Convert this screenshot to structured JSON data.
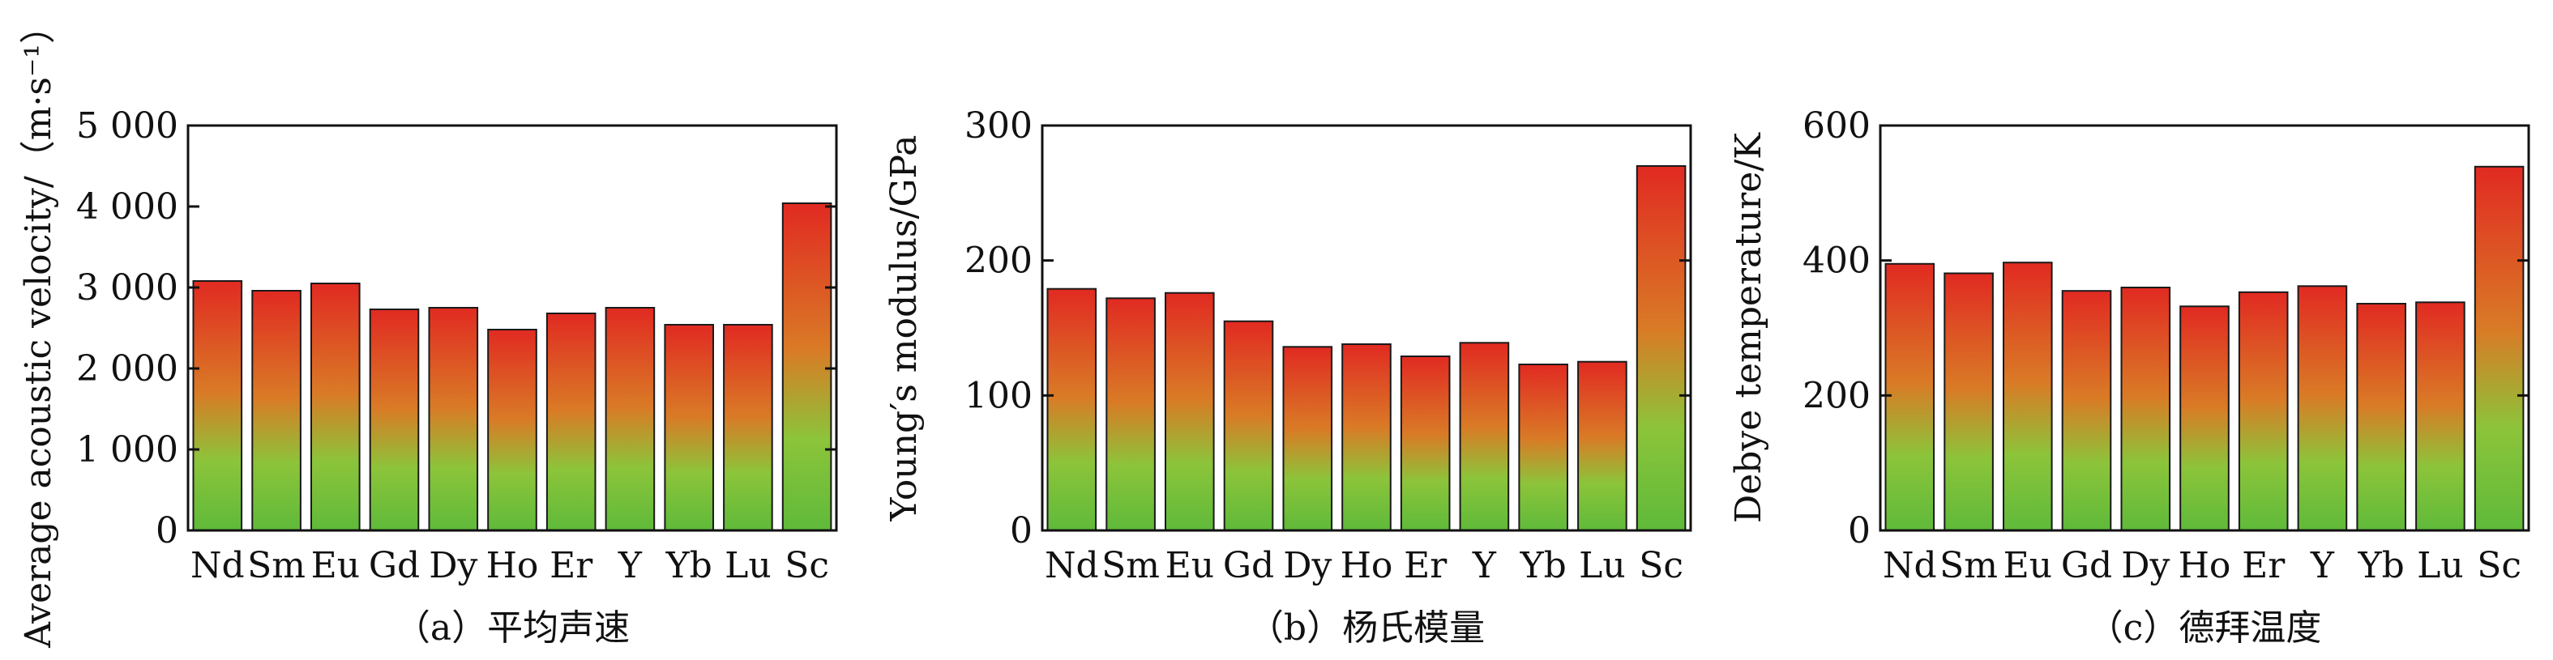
{
  "chart_data": [
    {
      "type": "bar",
      "categories": [
        "Nd",
        "Sm",
        "Eu",
        "Gd",
        "Dy",
        "Ho",
        "Er",
        "Y",
        "Yb",
        "Lu",
        "Sc"
      ],
      "values": [
        3080,
        2960,
        3050,
        2730,
        2750,
        2480,
        2680,
        2750,
        2540,
        2540,
        4040
      ],
      "ylabel": "Average acoustic velocity/（m·s⁻¹）",
      "ylim": [
        0,
        5000
      ],
      "yticks": [
        0,
        1000,
        2000,
        3000,
        4000,
        5000
      ],
      "ytick_labels": [
        "0",
        "1 000",
        "2 000",
        "3 000",
        "4 000",
        "5 000"
      ],
      "caption": "（a）平均声速"
    },
    {
      "type": "bar",
      "categories": [
        "Nd",
        "Sm",
        "Eu",
        "Gd",
        "Dy",
        "Ho",
        "Er",
        "Y",
        "Yb",
        "Lu",
        "Sc"
      ],
      "values": [
        179,
        172,
        176,
        155,
        136,
        138,
        129,
        139,
        123,
        125,
        270
      ],
      "ylabel": "Young′s modulus/GPa",
      "ylim": [
        0,
        300
      ],
      "yticks": [
        0,
        100,
        200,
        300
      ],
      "ytick_labels": [
        "0",
        "100",
        "200",
        "300"
      ],
      "caption": "（b）杨氏模量"
    },
    {
      "type": "bar",
      "categories": [
        "Nd",
        "Sm",
        "Eu",
        "Gd",
        "Dy",
        "Ho",
        "Er",
        "Y",
        "Yb",
        "Lu",
        "Sc"
      ],
      "values": [
        395,
        381,
        397,
        355,
        360,
        332,
        353,
        362,
        336,
        338,
        539
      ],
      "ylabel": "Debye temperature/K",
      "ylim": [
        0,
        600
      ],
      "yticks": [
        0,
        200,
        400,
        600
      ],
      "ytick_labels": [
        "0",
        "200",
        "400",
        "600"
      ],
      "caption": "（c）德拜温度"
    }
  ],
  "colors": {
    "bar_top": "#e12a22",
    "bar_mid": "#d97b26",
    "bar_bottom": "#5fba3a",
    "bar_outline": "#1a1a1a",
    "axis": "#111111"
  }
}
